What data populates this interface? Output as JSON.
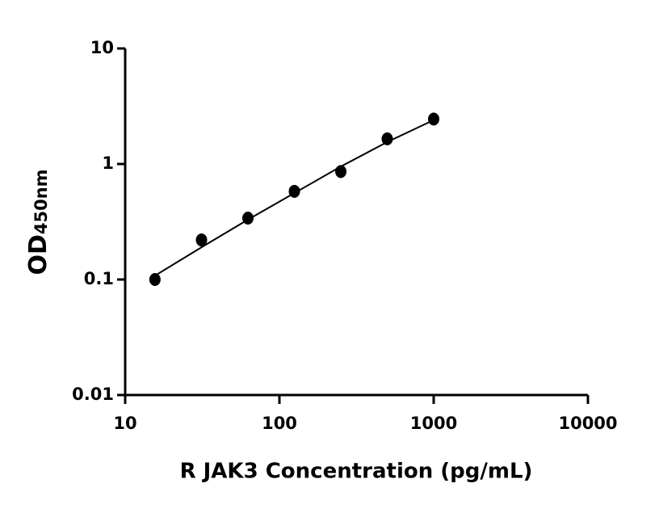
{
  "chart_data": {
    "type": "scatter",
    "xlabel": "R JAK3 Concentration (pg/mL)",
    "ylabel": "OD",
    "ylabel_subscript": "450nm",
    "xscale": "log",
    "yscale": "log",
    "xlim": [
      10,
      10000
    ],
    "ylim": [
      0.01,
      10
    ],
    "xticks": [
      10,
      100,
      1000,
      10000
    ],
    "yticks": [
      0.01,
      0.1,
      1,
      10
    ],
    "series": [
      {
        "color": "#000000",
        "x": [
          15.6,
          31.25,
          62.5,
          125,
          250,
          500,
          1000
        ],
        "values": [
          0.1,
          0.22,
          0.34,
          0.58,
          0.86,
          1.65,
          2.45
        ]
      }
    ],
    "fit": {
      "color": "#000000",
      "x": [
        15.6,
        31.25,
        62.5,
        125,
        250,
        500,
        1000
      ],
      "values": [
        0.108,
        0.19,
        0.33,
        0.56,
        0.95,
        1.55,
        2.4
      ]
    }
  }
}
